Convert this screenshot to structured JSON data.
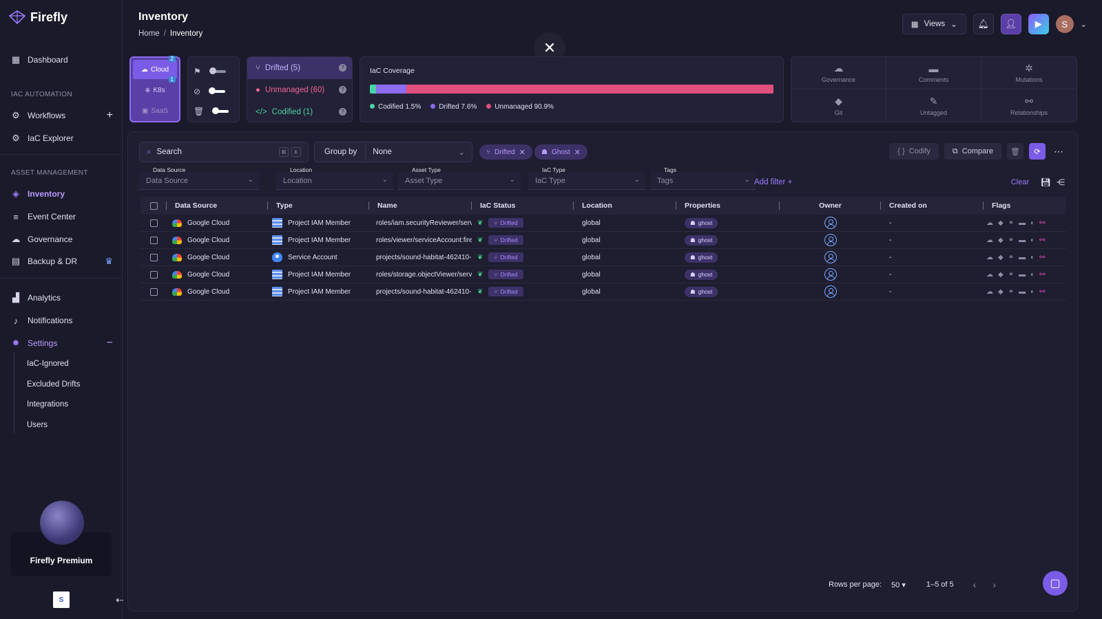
{
  "app": {
    "name": "Firefly"
  },
  "sidebar": {
    "dashboard": "Dashboard",
    "section_iac": "IAC AUTOMATION",
    "workflows": "Workflows",
    "iac_explorer": "IaC Explorer",
    "section_asset": "ASSET MANAGEMENT",
    "inventory": "Inventory",
    "event_center": "Event Center",
    "governance": "Governance",
    "backup": "Backup & DR",
    "analytics": "Analytics",
    "notifications": "Notifications",
    "settings": "Settings",
    "settings_items": [
      "IaC-Ignored",
      "Excluded Drifts",
      "Integrations",
      "Users"
    ],
    "premium_label": "Firefly Premium"
  },
  "header": {
    "title": "Inventory",
    "breadcrumb": [
      "Home",
      "Inventory"
    ],
    "views_label": "Views",
    "avatar_letter": "S"
  },
  "sources": {
    "items": [
      {
        "label": "Cloud",
        "badge": "2"
      },
      {
        "label": "K8s",
        "badge": "1"
      },
      {
        "label": "SaaS"
      }
    ]
  },
  "status": {
    "drifted": "Drifted (5)",
    "unmanaged": "Unmanaged (60)",
    "codified": "Codified (1)"
  },
  "coverage": {
    "title": "IaC Coverage",
    "segments": [
      {
        "name": "Codified",
        "label": "Codified 1.5%",
        "pct": 1.5,
        "color": "#48d3a6"
      },
      {
        "name": "Drifted",
        "label": "Drifted 7.6%",
        "pct": 7.6,
        "color": "#8c6cf0"
      },
      {
        "name": "Unmanaged",
        "label": "Unmanaged 90.9%",
        "pct": 90.9,
        "color": "#e0507d"
      }
    ]
  },
  "features": [
    "Governance",
    "Comments",
    "Mutations",
    "Git",
    "Untagged",
    "Relationships"
  ],
  "toolbar": {
    "search_placeholder": "Search",
    "group_by_label": "Group by",
    "group_by_value": "None",
    "chips": [
      "Drifted",
      "Ghost"
    ],
    "codify": "Codify",
    "compare": "Compare"
  },
  "filters": [
    {
      "label": "Data Source",
      "value": "Data Source"
    },
    {
      "label": "Location",
      "value": "Location"
    },
    {
      "label": "Asset Type",
      "value": "Asset Type"
    },
    {
      "label": "IaC Type",
      "value": "IaC Type"
    },
    {
      "label": "Tags",
      "value": "Tags"
    }
  ],
  "add_filter": "Add filter +",
  "clear": "Clear",
  "table": {
    "columns": [
      "Data Source",
      "Type",
      "Name",
      "IaC Status",
      "Location",
      "Properties",
      "Owner",
      "Created on",
      "Flags"
    ],
    "rows": [
      {
        "source": "Google Cloud",
        "type": "Project IAM Member",
        "type_icon": "iam",
        "name": "roles/iam.securityReviewer/servic",
        "status": "Drifted",
        "location": "global",
        "property": "ghost",
        "created": "-"
      },
      {
        "source": "Google Cloud",
        "type": "Project IAM Member",
        "type_icon": "iam",
        "name": "roles/viewer/serviceAccount:firefly",
        "status": "Drifted",
        "location": "global",
        "property": "ghost",
        "created": "-"
      },
      {
        "source": "Google Cloud",
        "type": "Service Account",
        "type_icon": "sa",
        "name": "projects/sound-habitat-462410-m",
        "status": "Drifted",
        "location": "global",
        "property": "ghost",
        "created": "-"
      },
      {
        "source": "Google Cloud",
        "type": "Project IAM Member",
        "type_icon": "iam",
        "name": "roles/storage.objectViewer/servic",
        "status": "Drifted",
        "location": "global",
        "property": "ghost",
        "created": "-"
      },
      {
        "source": "Google Cloud",
        "type": "Project IAM Member",
        "type_icon": "iam",
        "name": "projects/sound-habitat-462410-m",
        "status": "Drifted",
        "location": "global",
        "property": "ghost",
        "created": "-"
      }
    ]
  },
  "pagination": {
    "rows_per_page_label": "Rows per page:",
    "rows_per_page": "50",
    "range": "1–5 of 5"
  }
}
